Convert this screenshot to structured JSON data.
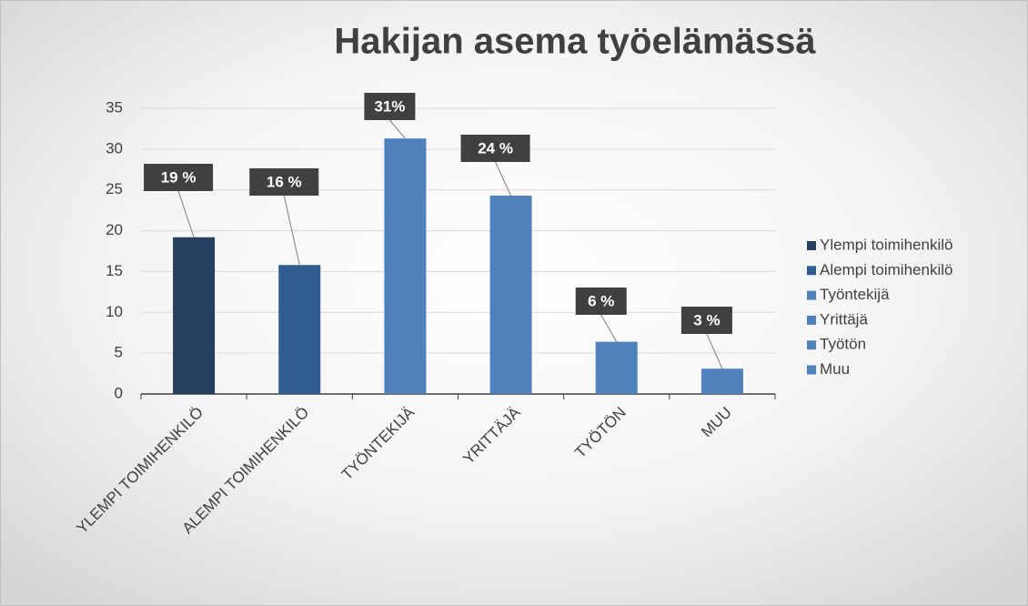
{
  "chart_data": {
    "type": "bar",
    "title": "Hakijan asema työelämässä",
    "categories": [
      "YLEMPI TOIMIHENKILÖ",
      "ALEMPI TOIMIHENKILÖ",
      "TYÖNTEKIJÄ",
      "YRITTÄJÄ",
      "TYÖTÖN",
      "MUU"
    ],
    "series": [
      {
        "name": "Ylempi toimihenkilö",
        "color": "#243f60",
        "values": [
          19.2,
          null,
          null,
          null,
          null,
          null
        ],
        "value_labels": [
          "19 %",
          null,
          null,
          null,
          null,
          null
        ]
      },
      {
        "name": "Alempi toimihenkilö",
        "color": "#2f5d8f",
        "values": [
          null,
          15.8,
          null,
          null,
          null,
          null
        ],
        "value_labels": [
          null,
          "16 %",
          null,
          null,
          null,
          null
        ]
      },
      {
        "name": "Työntekijä",
        "color": "#4f81bd",
        "values": [
          null,
          null,
          31.3,
          null,
          null,
          null
        ],
        "value_labels": [
          null,
          null,
          "31%",
          null,
          null,
          null
        ]
      },
      {
        "name": "Yrittäjä",
        "color": "#4f81bd",
        "values": [
          null,
          null,
          null,
          24.3,
          null,
          null
        ],
        "value_labels": [
          null,
          null,
          null,
          "24 %",
          null,
          null
        ]
      },
      {
        "name": "Työtön",
        "color": "#4f81bd",
        "values": [
          null,
          null,
          null,
          null,
          6.4,
          null
        ],
        "value_labels": [
          null,
          null,
          null,
          null,
          "6 %",
          null
        ]
      },
      {
        "name": "Muu",
        "color": "#4f81bd",
        "values": [
          null,
          null,
          null,
          null,
          null,
          3.1
        ],
        "value_labels": [
          null,
          null,
          null,
          null,
          null,
          "3 %"
        ]
      }
    ],
    "ylim": [
      0,
      35
    ],
    "yticks": [
      0,
      5,
      10,
      15,
      20,
      25,
      30,
      35
    ],
    "grid": true,
    "legend": "right"
  }
}
